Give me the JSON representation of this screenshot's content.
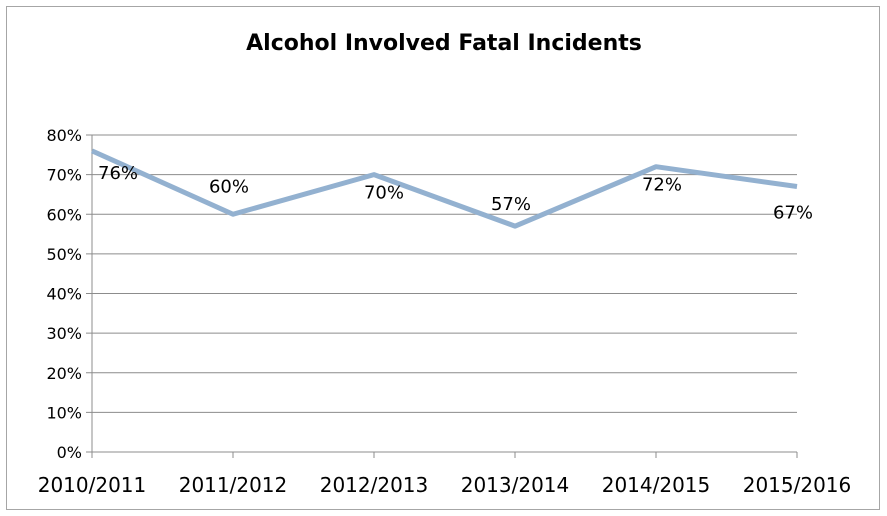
{
  "chart_data": {
    "type": "line",
    "title": "Alcohol Involved Fatal Incidents",
    "categories": [
      "2010/2011",
      "2011/2012",
      "2012/2013",
      "2013/2014",
      "2014/2015",
      "2015/2016"
    ],
    "series": [
      {
        "values": [
          76,
          60,
          70,
          57,
          72,
          67
        ]
      }
    ],
    "data_labels": [
      "76%",
      "60%",
      "70%",
      "57%",
      "72%",
      "67%"
    ],
    "y_ticks": [
      "0%",
      "10%",
      "20%",
      "30%",
      "40%",
      "50%",
      "60%",
      "70%",
      "80%"
    ],
    "ylim": [
      0,
      80
    ],
    "grid": true,
    "line_color": "#93b1d0"
  }
}
